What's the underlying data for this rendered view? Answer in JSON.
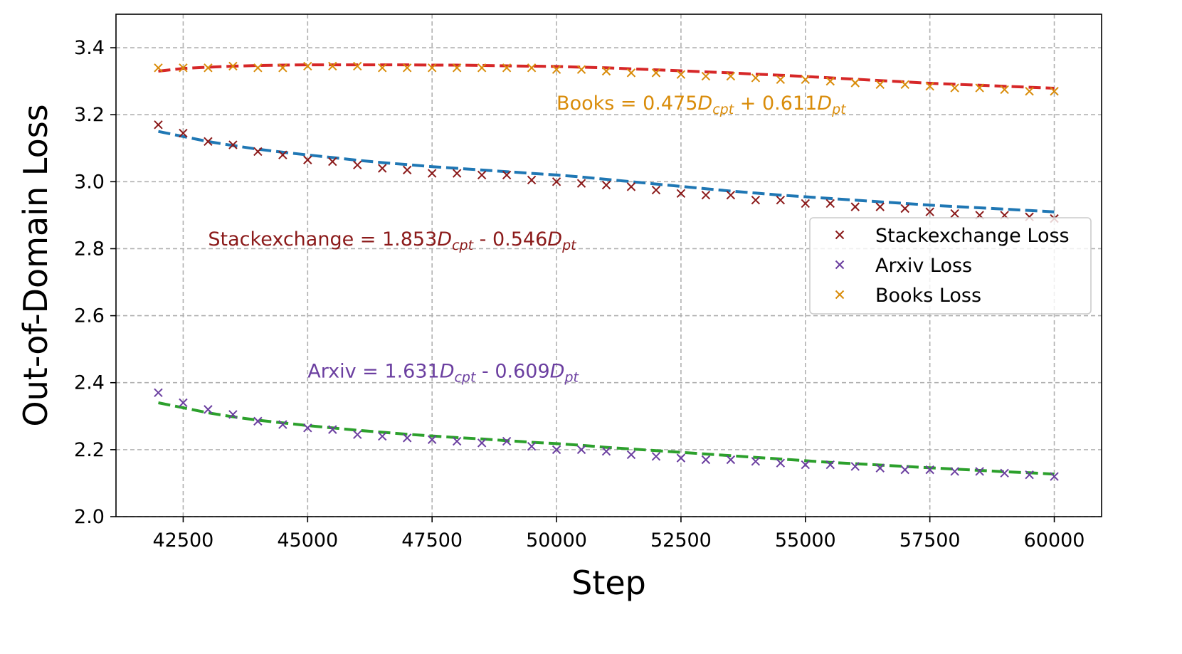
{
  "chart_data": {
    "type": "scatter",
    "xlabel": "Step",
    "ylabel": "Out-of-Domain Loss",
    "xlim": [
      41150,
      60950
    ],
    "ylim": [
      2.0,
      3.5
    ],
    "xticks": [
      42500,
      45000,
      47500,
      50000,
      52500,
      55000,
      57500,
      60000
    ],
    "yticks": [
      2.0,
      2.2,
      2.4,
      2.6,
      2.8,
      3.0,
      3.2,
      3.4
    ],
    "xtick_labels": [
      "42500",
      "45000",
      "47500",
      "50000",
      "52500",
      "55000",
      "57500",
      "60000"
    ],
    "ytick_labels": [
      "2.0",
      "2.2",
      "2.4",
      "2.6",
      "2.8",
      "3.0",
      "3.2",
      "3.4"
    ],
    "grid": true,
    "legend_position": "right",
    "x": [
      42000,
      42500,
      43000,
      43500,
      44000,
      44500,
      45000,
      45500,
      46000,
      46500,
      47000,
      47500,
      48000,
      48500,
      49000,
      49500,
      50000,
      50500,
      51000,
      51500,
      52000,
      52500,
      53000,
      53500,
      54000,
      54500,
      55000,
      55500,
      56000,
      56500,
      57000,
      57500,
      58000,
      58500,
      59000,
      59500,
      60000
    ],
    "series": [
      {
        "name": "Stackexchange Loss",
        "color": "#8b1a1a",
        "marker": "x",
        "values": [
          3.17,
          3.145,
          3.12,
          3.11,
          3.09,
          3.08,
          3.065,
          3.06,
          3.05,
          3.04,
          3.035,
          3.025,
          3.025,
          3.02,
          3.02,
          3.005,
          3.0,
          2.995,
          2.99,
          2.985,
          2.975,
          2.965,
          2.96,
          2.96,
          2.945,
          2.945,
          2.935,
          2.935,
          2.925,
          2.925,
          2.92,
          2.91,
          2.905,
          2.9,
          2.9,
          2.895,
          2.89
        ],
        "fit": {
          "color": "#1f77b4",
          "values": [
            3.15,
            3.135,
            3.12,
            3.108,
            3.097,
            3.088,
            3.08,
            3.072,
            3.064,
            3.057,
            3.051,
            3.045,
            3.04,
            3.035,
            3.03,
            3.025,
            3.02,
            3.014,
            3.007,
            3.0,
            2.993,
            2.986,
            2.979,
            2.972,
            2.966,
            2.96,
            2.955,
            2.95,
            2.945,
            2.94,
            2.935,
            2.93,
            2.926,
            2.922,
            2.918,
            2.914,
            2.91
          ]
        }
      },
      {
        "name": "Arxiv Loss",
        "color": "#6b3fa0",
        "marker": "x",
        "values": [
          2.37,
          2.34,
          2.32,
          2.305,
          2.285,
          2.275,
          2.265,
          2.26,
          2.245,
          2.24,
          2.235,
          2.23,
          2.225,
          2.22,
          2.225,
          2.21,
          2.2,
          2.2,
          2.195,
          2.185,
          2.18,
          2.175,
          2.17,
          2.17,
          2.165,
          2.16,
          2.155,
          2.155,
          2.15,
          2.145,
          2.14,
          2.14,
          2.135,
          2.135,
          2.13,
          2.125,
          2.12
        ],
        "fit": {
          "color": "#2ca02c",
          "values": [
            2.34,
            2.325,
            2.31,
            2.298,
            2.288,
            2.28,
            2.272,
            2.265,
            2.258,
            2.252,
            2.246,
            2.241,
            2.236,
            2.232,
            2.227,
            2.222,
            2.218,
            2.213,
            2.207,
            2.202,
            2.197,
            2.192,
            2.187,
            2.182,
            2.177,
            2.172,
            2.167,
            2.162,
            2.158,
            2.154,
            2.15,
            2.146,
            2.142,
            2.138,
            2.134,
            2.131,
            2.127
          ]
        }
      },
      {
        "name": "Books Loss",
        "color": "#d98c0a",
        "marker": "x",
        "values": [
          3.34,
          3.34,
          3.34,
          3.345,
          3.34,
          3.34,
          3.345,
          3.345,
          3.345,
          3.34,
          3.34,
          3.34,
          3.34,
          3.34,
          3.34,
          3.34,
          3.335,
          3.335,
          3.33,
          3.325,
          3.325,
          3.32,
          3.315,
          3.315,
          3.31,
          3.305,
          3.305,
          3.3,
          3.295,
          3.29,
          3.29,
          3.285,
          3.28,
          3.28,
          3.275,
          3.27,
          3.27
        ],
        "fit": {
          "color": "#d62728",
          "values": [
            3.33,
            3.338,
            3.342,
            3.345,
            3.347,
            3.348,
            3.349,
            3.349,
            3.349,
            3.349,
            3.349,
            3.348,
            3.348,
            3.347,
            3.346,
            3.345,
            3.344,
            3.342,
            3.34,
            3.337,
            3.334,
            3.331,
            3.328,
            3.325,
            3.321,
            3.318,
            3.314,
            3.31,
            3.306,
            3.302,
            3.298,
            3.294,
            3.291,
            3.288,
            3.285,
            3.282,
            3.279
          ]
        }
      }
    ],
    "annotations": [
      {
        "name": "books",
        "color": "#d98c0a",
        "x": 50000,
        "y": 3.215,
        "prefix": "Books = 0.475",
        "var1": "D",
        "sub1": "cpt",
        "mid": " + 0.611",
        "var2": "D",
        "sub2": "pt"
      },
      {
        "name": "stackexchange",
        "color": "#8b1a1a",
        "x": 43000,
        "y": 2.81,
        "prefix": "Stackexchange = 1.853",
        "var1": "D",
        "sub1": "cpt",
        "mid": " - 0.546",
        "var2": "D",
        "sub2": "pt"
      },
      {
        "name": "arxiv",
        "color": "#6b3fa0",
        "x": 45000,
        "y": 2.415,
        "prefix": "Arxiv = 1.631",
        "var1": "D",
        "sub1": "cpt",
        "mid": " - 0.609",
        "var2": "D",
        "sub2": "pt"
      }
    ]
  }
}
